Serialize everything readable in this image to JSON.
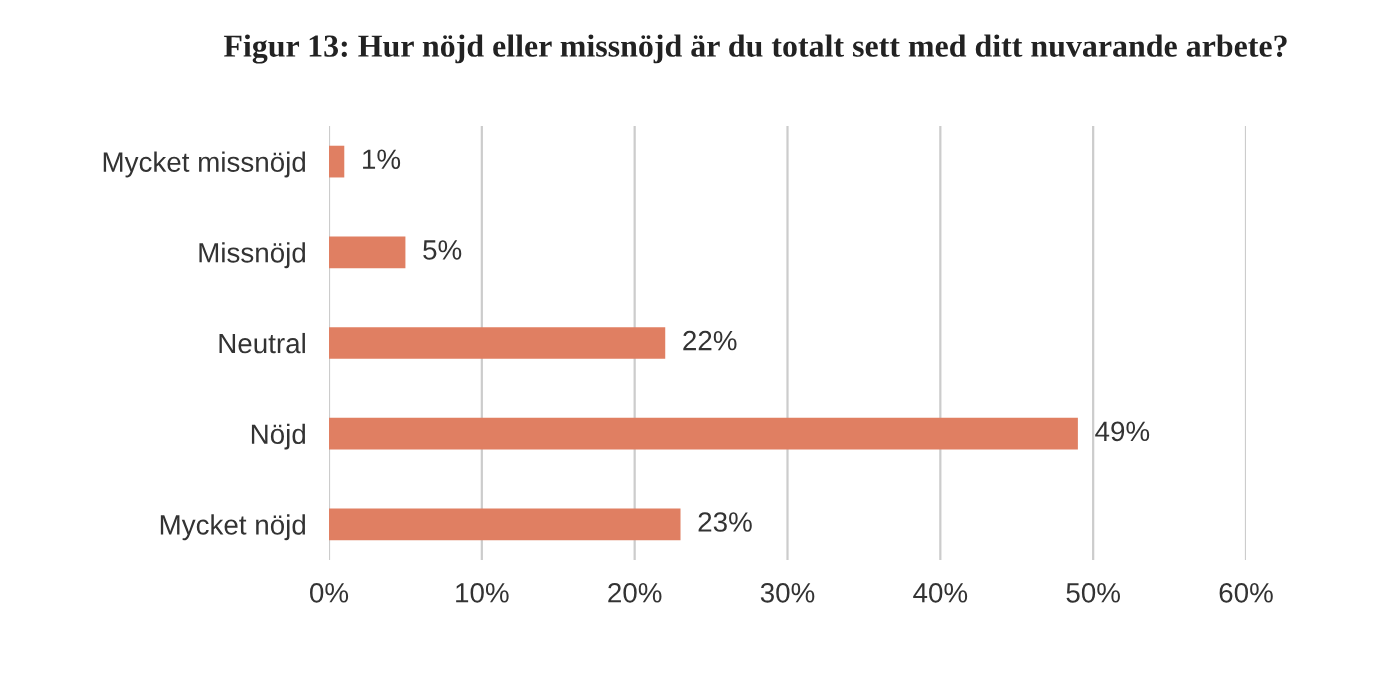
{
  "chart_data": {
    "type": "bar",
    "orientation": "horizontal",
    "title": "Figur 13: Hur nöjd eller missnöjd är du totalt sett med ditt nuvarande arbete?",
    "categories": [
      "Mycket missnöjd",
      "Missnöjd",
      "Neutral",
      "Nöjd",
      "Mycket nöjd"
    ],
    "values": [
      1,
      5,
      22,
      49,
      23
    ],
    "value_labels": [
      "1%",
      "5%",
      "22%",
      "49%",
      "23%"
    ],
    "color": "#e07f62",
    "xlim": [
      0,
      60
    ],
    "xticks": [
      {
        "value": 0,
        "label": "0%"
      },
      {
        "value": 10,
        "label": "10%"
      },
      {
        "value": 20,
        "label": "20%"
      },
      {
        "value": 30,
        "label": "30%"
      },
      {
        "value": 40,
        "label": "40%"
      },
      {
        "value": 50,
        "label": "50%"
      },
      {
        "value": 60,
        "label": "60%"
      }
    ],
    "grid": "x"
  }
}
